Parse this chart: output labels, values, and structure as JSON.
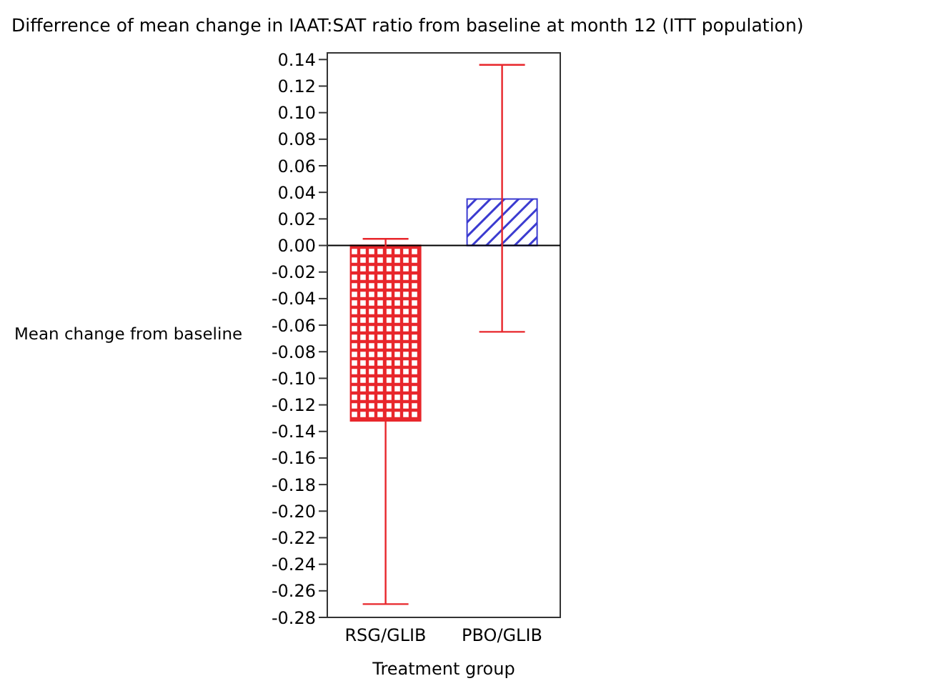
{
  "chart_data": {
    "type": "bar",
    "title": "Differrence of mean change in IAAT:SAT ratio from baseline at month 12 (ITT population)",
    "xlabel": "Treatment group",
    "ylabel": "Mean change from baseline",
    "categories": [
      "RSG/GLIB",
      "PBO/GLIB"
    ],
    "values": [
      -0.132,
      0.035
    ],
    "colors": [
      "#e8262b",
      "#3b3bd0"
    ],
    "errors": [
      [
        -0.27,
        0.005
      ],
      [
        -0.065,
        0.136
      ]
    ],
    "ylim": [
      -0.28,
      0.145
    ],
    "yticks": [
      {
        "value": 0.14,
        "label": "0.14"
      },
      {
        "value": 0.12,
        "label": "0.12"
      },
      {
        "value": 0.1,
        "label": "0.10"
      },
      {
        "value": 0.08,
        "label": "0.08"
      },
      {
        "value": 0.06,
        "label": "0.06"
      },
      {
        "value": 0.04,
        "label": "0.04"
      },
      {
        "value": 0.02,
        "label": "0.02"
      },
      {
        "value": 0,
        "label": "0.00"
      },
      {
        "value": -0.02,
        "label": "-0.02"
      },
      {
        "value": -0.04,
        "label": "-0.04"
      },
      {
        "value": -0.06,
        "label": "-0.06"
      },
      {
        "value": -0.08,
        "label": "-0.08"
      },
      {
        "value": -0.1,
        "label": "-0.10"
      },
      {
        "value": -0.12,
        "label": "-0.12"
      },
      {
        "value": -0.14,
        "label": "-0.14"
      },
      {
        "value": -0.16,
        "label": "-0.16"
      },
      {
        "value": -0.18,
        "label": "-0.18"
      },
      {
        "value": -0.2,
        "label": "-0.20"
      },
      {
        "value": -0.22,
        "label": "-0.22"
      },
      {
        "value": -0.24,
        "label": "-0.24"
      },
      {
        "value": -0.26,
        "label": "-0.26"
      },
      {
        "value": -0.28,
        "label": "-0.28"
      }
    ],
    "ref_lines": [
      {
        "axis": "y",
        "value": 0,
        "color": "#000000"
      }
    ]
  }
}
